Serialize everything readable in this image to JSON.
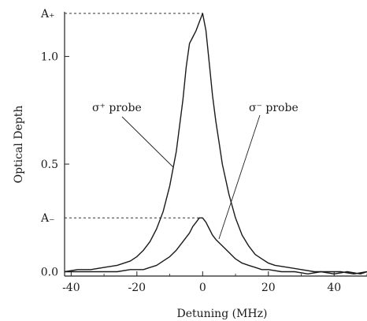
{
  "chart_data": {
    "type": "line",
    "title": "",
    "xlabel": "Detuning (MHz)",
    "ylabel": "Optical Depth",
    "xlim": [
      -42,
      50
    ],
    "ylim": [
      -0.02,
      1.2
    ],
    "x_ticks": [
      -40,
      -20,
      0,
      20,
      40
    ],
    "x_tick_labels": [
      "-40",
      "-20",
      "0",
      "20",
      "40"
    ],
    "y_ticks": [
      0.0,
      0.5,
      1.0
    ],
    "y_tick_labels": [
      "0.0",
      "0.5",
      "1.0"
    ],
    "grid": false,
    "series": [
      {
        "name": "σ⁺ probe",
        "x": [
          -42,
          -38,
          -34,
          -30,
          -26,
          -22,
          -20,
          -18,
          -16,
          -14,
          -12,
          -10,
          -8,
          -6,
          -5,
          -4,
          -3,
          -2,
          -1,
          0,
          1,
          2,
          3,
          4,
          5,
          6,
          8,
          10,
          12,
          14,
          16,
          18,
          20,
          22,
          26,
          30,
          34,
          38,
          42,
          46,
          50
        ],
        "y": [
          0.0,
          0.01,
          0.01,
          0.02,
          0.03,
          0.05,
          0.07,
          0.1,
          0.14,
          0.2,
          0.28,
          0.4,
          0.56,
          0.8,
          0.95,
          1.06,
          1.09,
          1.12,
          1.16,
          1.2,
          1.12,
          0.97,
          0.82,
          0.7,
          0.6,
          0.5,
          0.36,
          0.25,
          0.17,
          0.12,
          0.08,
          0.06,
          0.04,
          0.03,
          0.02,
          0.01,
          0.0,
          0.0,
          0.0,
          -0.01,
          0.0
        ]
      },
      {
        "name": "σ⁻ probe",
        "x": [
          -42,
          -36,
          -30,
          -26,
          -22,
          -18,
          -16,
          -14,
          -12,
          -10,
          -8,
          -6,
          -4,
          -3,
          -2,
          -1,
          0,
          1,
          2,
          3,
          4,
          6,
          8,
          10,
          12,
          14,
          16,
          18,
          20,
          24,
          28,
          32,
          36,
          40,
          44,
          48,
          50
        ],
        "y": [
          0.0,
          0.0,
          0.0,
          0.0,
          0.01,
          0.01,
          0.02,
          0.03,
          0.05,
          0.07,
          0.1,
          0.14,
          0.18,
          0.21,
          0.23,
          0.25,
          0.25,
          0.23,
          0.2,
          0.17,
          0.15,
          0.12,
          0.09,
          0.06,
          0.04,
          0.03,
          0.02,
          0.01,
          0.01,
          0.0,
          0.0,
          -0.01,
          0.0,
          -0.01,
          0.0,
          -0.01,
          0.0
        ]
      }
    ],
    "annotations": {
      "a_plus": "A₊",
      "a_minus": "A₋",
      "a_plus_value": 1.2,
      "a_minus_value": 0.25,
      "sigma_plus_label": "σ⁺ probe",
      "sigma_minus_label": "σ⁻ probe"
    }
  }
}
